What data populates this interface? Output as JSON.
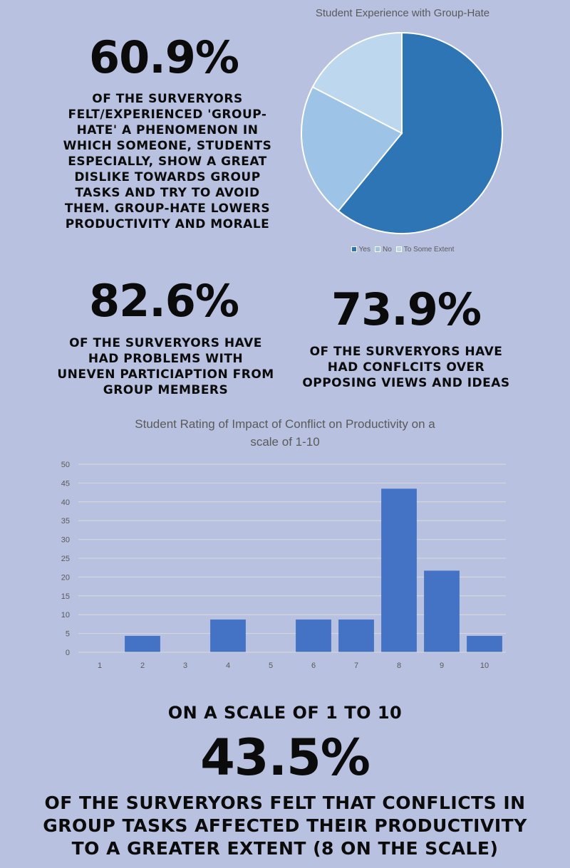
{
  "stat1": {
    "value": "60.9%",
    "text": "Of the surveryors felt/experienced 'group-hate' a phenomenon in which someone, students especially, show a great dislike towards group tasks and try to avoid them. Group-hate lowers productivity and morale"
  },
  "stat2": {
    "value": "82.6%",
    "text": "Of the surveryors have had problems with uneven particiaption from group members"
  },
  "stat3": {
    "value": "73.9%",
    "text": "Of the surveryors have had conflcits over opposing views and ideas"
  },
  "stat4": {
    "lead": "On a scale of 1 to 10",
    "value": "43.5%",
    "text": "Of the surveryors felt that conflicts in group tasks affected their productivity to a greater extent (8 on the scale)"
  },
  "chart_data": [
    {
      "type": "pie",
      "title": "Student Experience with Group-Hate",
      "labels": [
        "Yes",
        "No",
        "To Some Extent"
      ],
      "values": [
        60.9,
        21.7,
        17.4
      ],
      "colors": [
        "#2e75b6",
        "#9dc3e6",
        "#bdd7ee"
      ],
      "legend_position": "bottom"
    },
    {
      "type": "bar",
      "title_line1": "Student Rating of Impact of Conflict on Productivity on a",
      "title_line2": "scale of 1-10",
      "categories": [
        "1",
        "2",
        "3",
        "4",
        "5",
        "6",
        "7",
        "8",
        "9",
        "10"
      ],
      "values": [
        0,
        4.35,
        0,
        8.7,
        0,
        8.7,
        8.7,
        43.5,
        21.7,
        4.35
      ],
      "ylim": [
        0,
        50
      ],
      "yticks": [
        "0",
        "5",
        "10",
        "15",
        "20",
        "25",
        "30",
        "35",
        "40",
        "45",
        "50"
      ],
      "grid": true,
      "bar_color": "#4472c4"
    }
  ]
}
